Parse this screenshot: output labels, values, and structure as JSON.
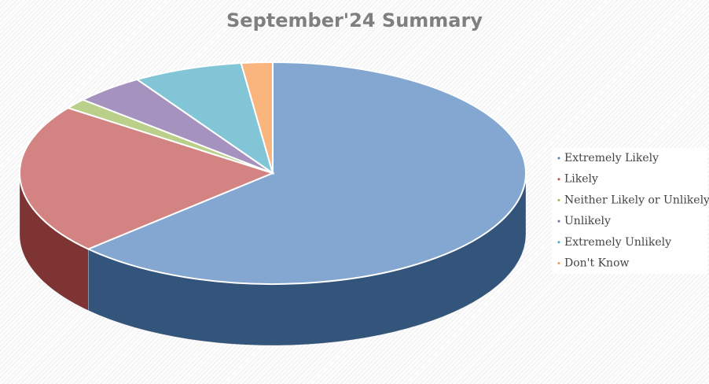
{
  "chart_data": {
    "type": "pie",
    "title": "September'24 Summary",
    "categories": [
      "Extremely Likely",
      "Likely",
      "Neither Likely or Unlikely",
      "Unlikely",
      "Extremely Unlikely",
      "Don't Know"
    ],
    "values": [
      63,
      22,
      1.5,
      4.5,
      7,
      2
    ],
    "colors": [
      "#4f81bd",
      "#c0504d",
      "#9bbb59",
      "#8064a2",
      "#4bacc6",
      "#f79646"
    ],
    "legend": "right"
  }
}
